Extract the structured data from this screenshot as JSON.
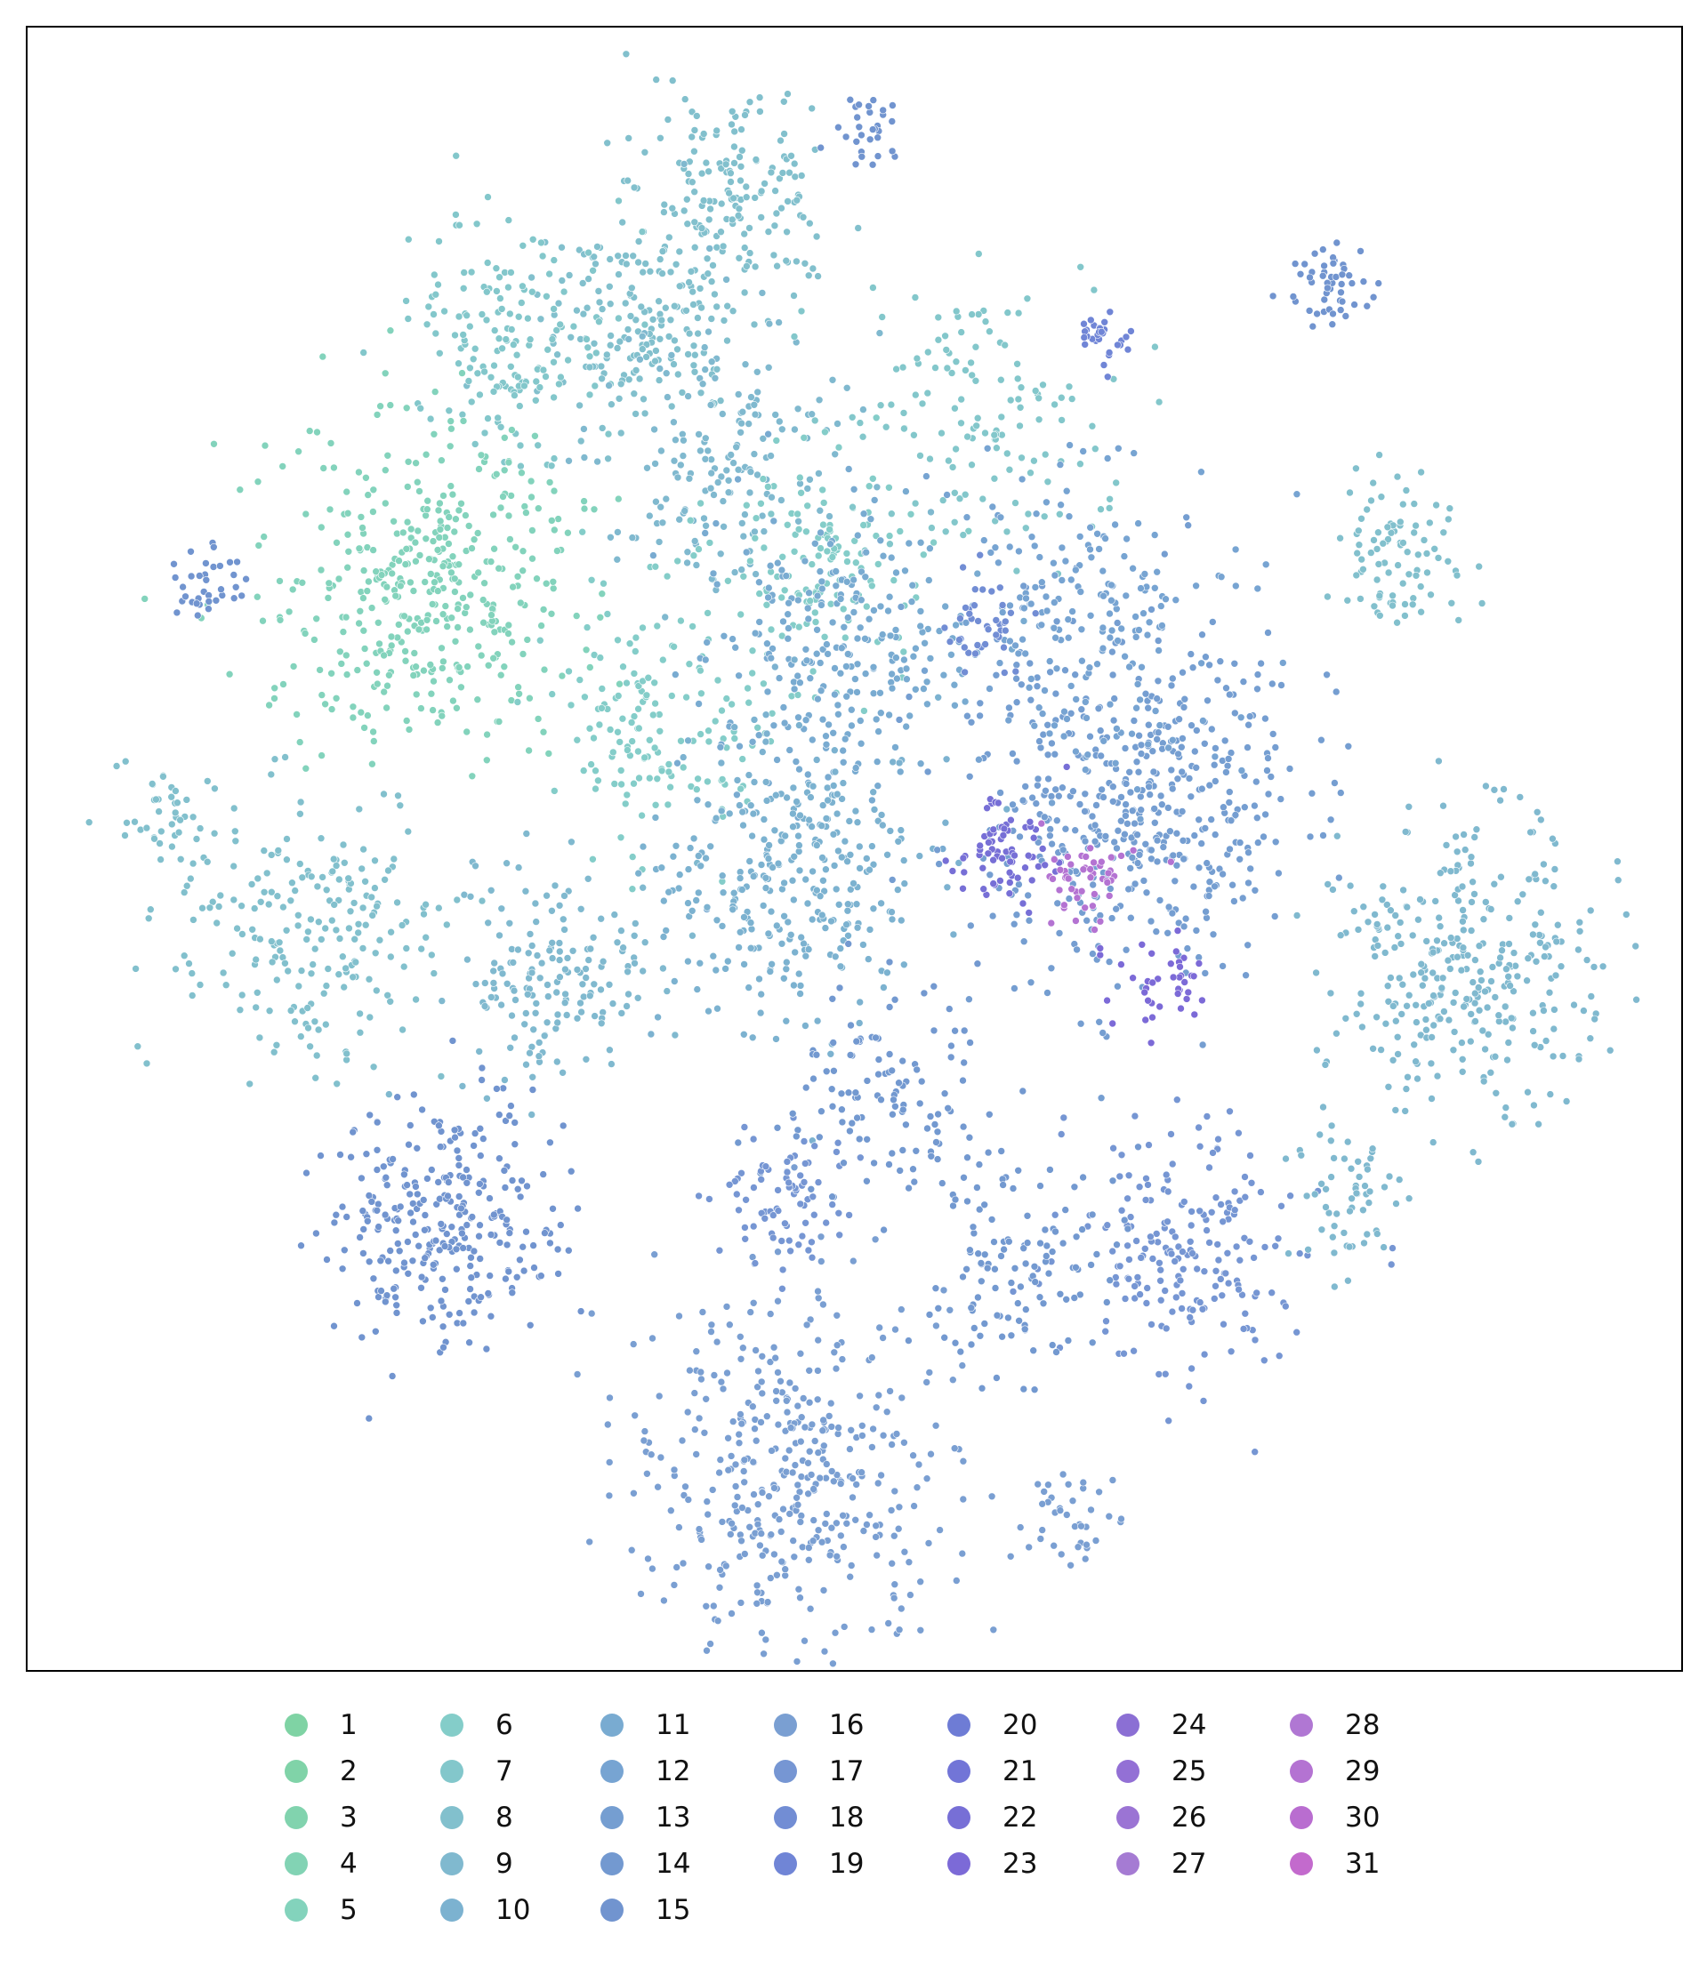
{
  "chart_data": {
    "type": "scatter",
    "title": "",
    "xlabel": "",
    "ylabel": "",
    "axes_ticks": "none",
    "grid": false,
    "legend": {
      "placement": "bottom-center",
      "columns": 7,
      "items": [
        {
          "label": "1",
          "color": "#7fd3a4"
        },
        {
          "label": "2",
          "color": "#80d3a8"
        },
        {
          "label": "3",
          "color": "#81d3ae"
        },
        {
          "label": "4",
          "color": "#82d3b4"
        },
        {
          "label": "5",
          "color": "#83d3bc"
        },
        {
          "label": "6",
          "color": "#84cdc9"
        },
        {
          "label": "7",
          "color": "#83c7cb"
        },
        {
          "label": "8",
          "color": "#82c0cd"
        },
        {
          "label": "9",
          "color": "#80b9cf"
        },
        {
          "label": "10",
          "color": "#7cb2d0"
        },
        {
          "label": "11",
          "color": "#79abd1"
        },
        {
          "label": "12",
          "color": "#77a4d2"
        },
        {
          "label": "13",
          "color": "#759ed1"
        },
        {
          "label": "14",
          "color": "#7399d0"
        },
        {
          "label": "15",
          "color": "#7194cf"
        },
        {
          "label": "16",
          "color": "#7a9fd2"
        },
        {
          "label": "17",
          "color": "#7696d3"
        },
        {
          "label": "18",
          "color": "#728dd4"
        },
        {
          "label": "19",
          "color": "#7085d6"
        },
        {
          "label": "20",
          "color": "#6e7cd5"
        },
        {
          "label": "21",
          "color": "#7275d7"
        },
        {
          "label": "22",
          "color": "#776fd6"
        },
        {
          "label": "23",
          "color": "#7c6ad7"
        },
        {
          "label": "24",
          "color": "#8b6fd4"
        },
        {
          "label": "25",
          "color": "#9370d5"
        },
        {
          "label": "26",
          "color": "#9b74d4"
        },
        {
          "label": "27",
          "color": "#a57bd3"
        },
        {
          "label": "28",
          "color": "#b077d3"
        },
        {
          "label": "29",
          "color": "#b473d2"
        },
        {
          "label": "30",
          "color": "#b96dd0"
        },
        {
          "label": "31",
          "color": "#c36acd"
        }
      ]
    },
    "clusters": [
      {
        "class": "8",
        "cx": 0.37,
        "cy": 0.18,
        "spread": 0.03,
        "n": 180
      },
      {
        "class": "7",
        "cx": 0.29,
        "cy": 0.19,
        "spread": 0.03,
        "n": 160
      },
      {
        "class": "8",
        "cx": 0.43,
        "cy": 0.1,
        "spread": 0.03,
        "n": 170
      },
      {
        "class": "9",
        "cx": 0.42,
        "cy": 0.26,
        "spread": 0.04,
        "n": 170
      },
      {
        "class": "5",
        "cx": 0.24,
        "cy": 0.34,
        "spread": 0.045,
        "n": 420
      },
      {
        "class": "6",
        "cx": 0.38,
        "cy": 0.42,
        "spread": 0.035,
        "n": 160
      },
      {
        "class": "6",
        "cx": 0.48,
        "cy": 0.32,
        "spread": 0.03,
        "n": 130
      },
      {
        "class": "7",
        "cx": 0.57,
        "cy": 0.24,
        "spread": 0.04,
        "n": 140
      },
      {
        "class": "8",
        "cx": 0.17,
        "cy": 0.55,
        "spread": 0.04,
        "n": 220
      },
      {
        "class": "9",
        "cx": 0.32,
        "cy": 0.58,
        "spread": 0.03,
        "n": 170
      },
      {
        "class": "11",
        "cx": 0.49,
        "cy": 0.38,
        "spread": 0.04,
        "n": 260
      },
      {
        "class": "10",
        "cx": 0.46,
        "cy": 0.52,
        "spread": 0.04,
        "n": 320
      },
      {
        "class": "13",
        "cx": 0.67,
        "cy": 0.47,
        "spread": 0.05,
        "n": 500
      },
      {
        "class": "12",
        "cx": 0.64,
        "cy": 0.36,
        "spread": 0.04,
        "n": 200
      },
      {
        "class": "22",
        "cx": 0.59,
        "cy": 0.5,
        "spread": 0.015,
        "n": 70
      },
      {
        "class": "29",
        "cx": 0.64,
        "cy": 0.52,
        "spread": 0.012,
        "n": 50
      },
      {
        "class": "23",
        "cx": 0.69,
        "cy": 0.58,
        "spread": 0.015,
        "n": 40
      },
      {
        "class": "9",
        "cx": 0.87,
        "cy": 0.57,
        "spread": 0.04,
        "n": 330
      },
      {
        "class": "8",
        "cx": 0.83,
        "cy": 0.32,
        "spread": 0.02,
        "n": 90
      },
      {
        "class": "15",
        "cx": 0.25,
        "cy": 0.73,
        "spread": 0.035,
        "n": 300
      },
      {
        "class": "16",
        "cx": 0.46,
        "cy": 0.88,
        "spread": 0.05,
        "n": 420
      },
      {
        "class": "17",
        "cx": 0.46,
        "cy": 0.71,
        "spread": 0.02,
        "n": 80
      },
      {
        "class": "14",
        "cx": 0.52,
        "cy": 0.65,
        "spread": 0.03,
        "n": 120
      },
      {
        "class": "17",
        "cx": 0.7,
        "cy": 0.74,
        "spread": 0.035,
        "n": 200
      },
      {
        "class": "14",
        "cx": 0.6,
        "cy": 0.75,
        "spread": 0.03,
        "n": 120
      },
      {
        "class": "15",
        "cx": 0.79,
        "cy": 0.16,
        "spread": 0.012,
        "n": 50
      },
      {
        "class": "19",
        "cx": 0.65,
        "cy": 0.19,
        "spread": 0.008,
        "n": 30
      },
      {
        "class": "15",
        "cx": 0.11,
        "cy": 0.34,
        "spread": 0.012,
        "n": 35
      },
      {
        "class": "15",
        "cx": 0.51,
        "cy": 0.06,
        "spread": 0.01,
        "n": 30
      },
      {
        "class": "18",
        "cx": 0.58,
        "cy": 0.36,
        "spread": 0.012,
        "n": 40
      },
      {
        "class": "9",
        "cx": 0.8,
        "cy": 0.71,
        "spread": 0.02,
        "n": 60
      },
      {
        "class": "16",
        "cx": 0.63,
        "cy": 0.91,
        "spread": 0.015,
        "n": 40
      },
      {
        "class": "8",
        "cx": 0.08,
        "cy": 0.48,
        "spread": 0.015,
        "n": 40
      }
    ]
  }
}
